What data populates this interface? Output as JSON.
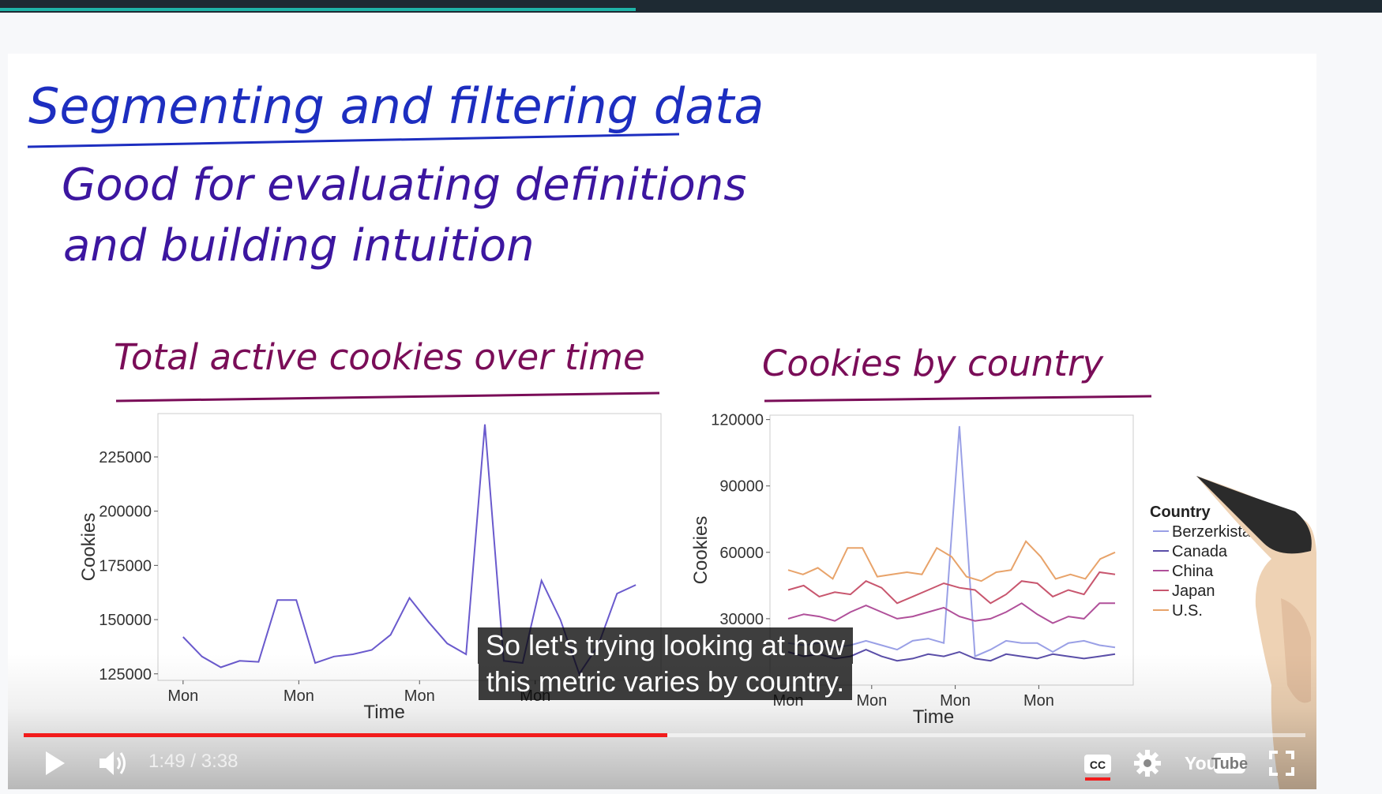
{
  "slide": {
    "title": "Segmenting and filtering data",
    "subtitle_line1": "Good for evaluating definitions",
    "subtitle_line2": "and building intuition"
  },
  "charts": {
    "left_heading": "Total active cookies over time",
    "right_heading": "Cookies by country"
  },
  "chart_data": [
    {
      "type": "line",
      "title": "Total active cookies over time",
      "xlabel": "Time",
      "ylabel": "Cookies",
      "x_tick_labels": [
        "Mon",
        "Mon",
        "Mon",
        "Mon"
      ],
      "y_tick_labels": [
        "125000",
        "150000",
        "175000",
        "200000",
        "225000"
      ],
      "ylim": [
        122000,
        245000
      ],
      "grid": false,
      "series": [
        {
          "color": "#6a5acd",
          "values": [
            142000,
            133000,
            128000,
            131000,
            130500,
            159000,
            159000,
            130000,
            133000,
            134000,
            136000,
            143000,
            160000,
            149000,
            139000,
            134000,
            240000,
            131000,
            130000,
            168000,
            150000,
            125000,
            138000,
            162000,
            166000
          ]
        }
      ]
    },
    {
      "type": "line",
      "title": "Cookies by country",
      "xlabel": "Time",
      "ylabel": "Cookies",
      "x_tick_labels": [
        "Mon",
        "Mon",
        "Mon",
        "Mon"
      ],
      "y_tick_labels": [
        "30000",
        "60000",
        "90000",
        "120000"
      ],
      "ylim": [
        0,
        122000
      ],
      "grid": false,
      "legend_title": "Country",
      "legend_position": "right",
      "series": [
        {
          "name": "Berzerkistan",
          "color": "#9aa0e6",
          "values": [
            19000,
            18000,
            19000,
            17000,
            18000,
            20000,
            18000,
            16000,
            20000,
            21000,
            19000,
            117000,
            13000,
            16000,
            20000,
            19000,
            19000,
            15000,
            19000,
            20000,
            18000,
            17000
          ]
        },
        {
          "name": "Canada",
          "color": "#5a4ea8",
          "values": [
            15000,
            13000,
            14000,
            12000,
            13000,
            16000,
            13000,
            11000,
            12000,
            14000,
            13000,
            15000,
            12000,
            11000,
            14000,
            13000,
            12000,
            14000,
            13000,
            12000,
            13000,
            14000
          ]
        },
        {
          "name": "China",
          "color": "#b0509a",
          "values": [
            30000,
            32000,
            31000,
            29000,
            33000,
            36000,
            33000,
            30000,
            31000,
            33000,
            35000,
            31000,
            29000,
            30000,
            33000,
            37000,
            32000,
            28000,
            31000,
            30000,
            37000,
            37000
          ]
        },
        {
          "name": "Japan",
          "color": "#c8566e",
          "values": [
            43000,
            45000,
            40000,
            42000,
            41000,
            47000,
            44000,
            37000,
            40000,
            43000,
            46000,
            44000,
            43000,
            37000,
            41000,
            47000,
            46000,
            40000,
            43000,
            41000,
            51000,
            50000
          ]
        },
        {
          "name": "U.S.",
          "color": "#e8a36a",
          "values": [
            52000,
            50000,
            53000,
            48000,
            62000,
            62000,
            49000,
            50000,
            51000,
            50000,
            62000,
            58000,
            49000,
            47000,
            51000,
            52000,
            65000,
            58000,
            48000,
            50000,
            48000,
            57000,
            60000
          ]
        }
      ]
    }
  ],
  "caption": {
    "line1": "So let's trying looking at how",
    "line2": "this metric varies by country."
  },
  "player": {
    "current_time": "1:49",
    "duration": "3:38",
    "time_text": "1:49 / 3:38",
    "progress_fraction": 0.502,
    "cc_label": "CC",
    "brand_you": "You",
    "brand_tube": "Tube",
    "play_icon": "play-icon",
    "volume_icon": "volume-icon",
    "settings_icon": "gear-icon",
    "fullscreen_icon": "fullscreen-icon",
    "accent_color": "#f21c1c"
  },
  "page": {
    "course_progress_fraction": 0.46,
    "course_progress_color": "#1fb4a8"
  }
}
